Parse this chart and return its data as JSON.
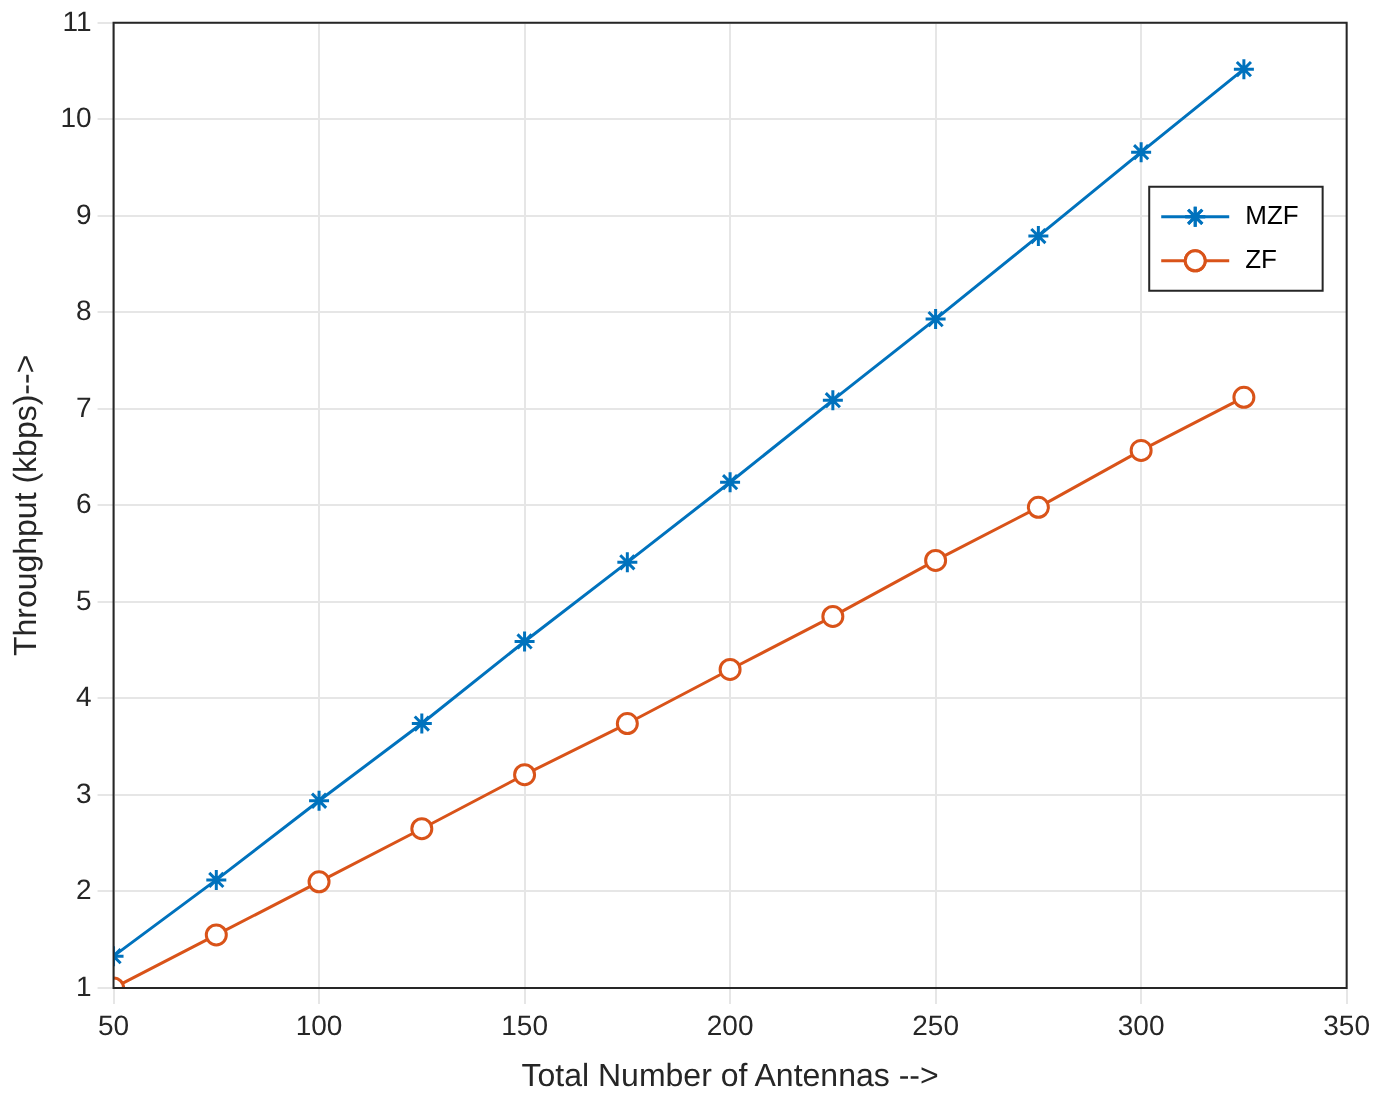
{
  "chart_data": {
    "type": "line",
    "xlabel": "Total Number of Antennas -->",
    "ylabel": "Throughput (kbps)-->",
    "x": [
      50,
      75,
      100,
      125,
      150,
      175,
      200,
      225,
      250,
      275,
      300,
      325
    ],
    "series": [
      {
        "name": "MZF",
        "color": "#0072bd",
        "marker": "cross",
        "values": [
          1.33,
          2.12,
          2.94,
          3.74,
          4.59,
          5.41,
          6.24,
          7.09,
          7.93,
          8.79,
          9.66,
          10.52
        ]
      },
      {
        "name": "ZF",
        "color": "#d95319",
        "marker": "circle",
        "values": [
          1.0,
          1.55,
          2.1,
          2.65,
          3.21,
          3.74,
          4.3,
          4.85,
          5.43,
          5.98,
          6.57,
          7.12
        ]
      }
    ],
    "xlim": [
      50,
      350
    ],
    "xticks": [
      50,
      100,
      150,
      200,
      250,
      300,
      350
    ],
    "ylim": [
      1,
      11
    ],
    "yticks": [
      1,
      2,
      3,
      4,
      5,
      6,
      7,
      8,
      9,
      10,
      11
    ],
    "grid": true,
    "legend": "top right",
    "line_style": "solid"
  }
}
